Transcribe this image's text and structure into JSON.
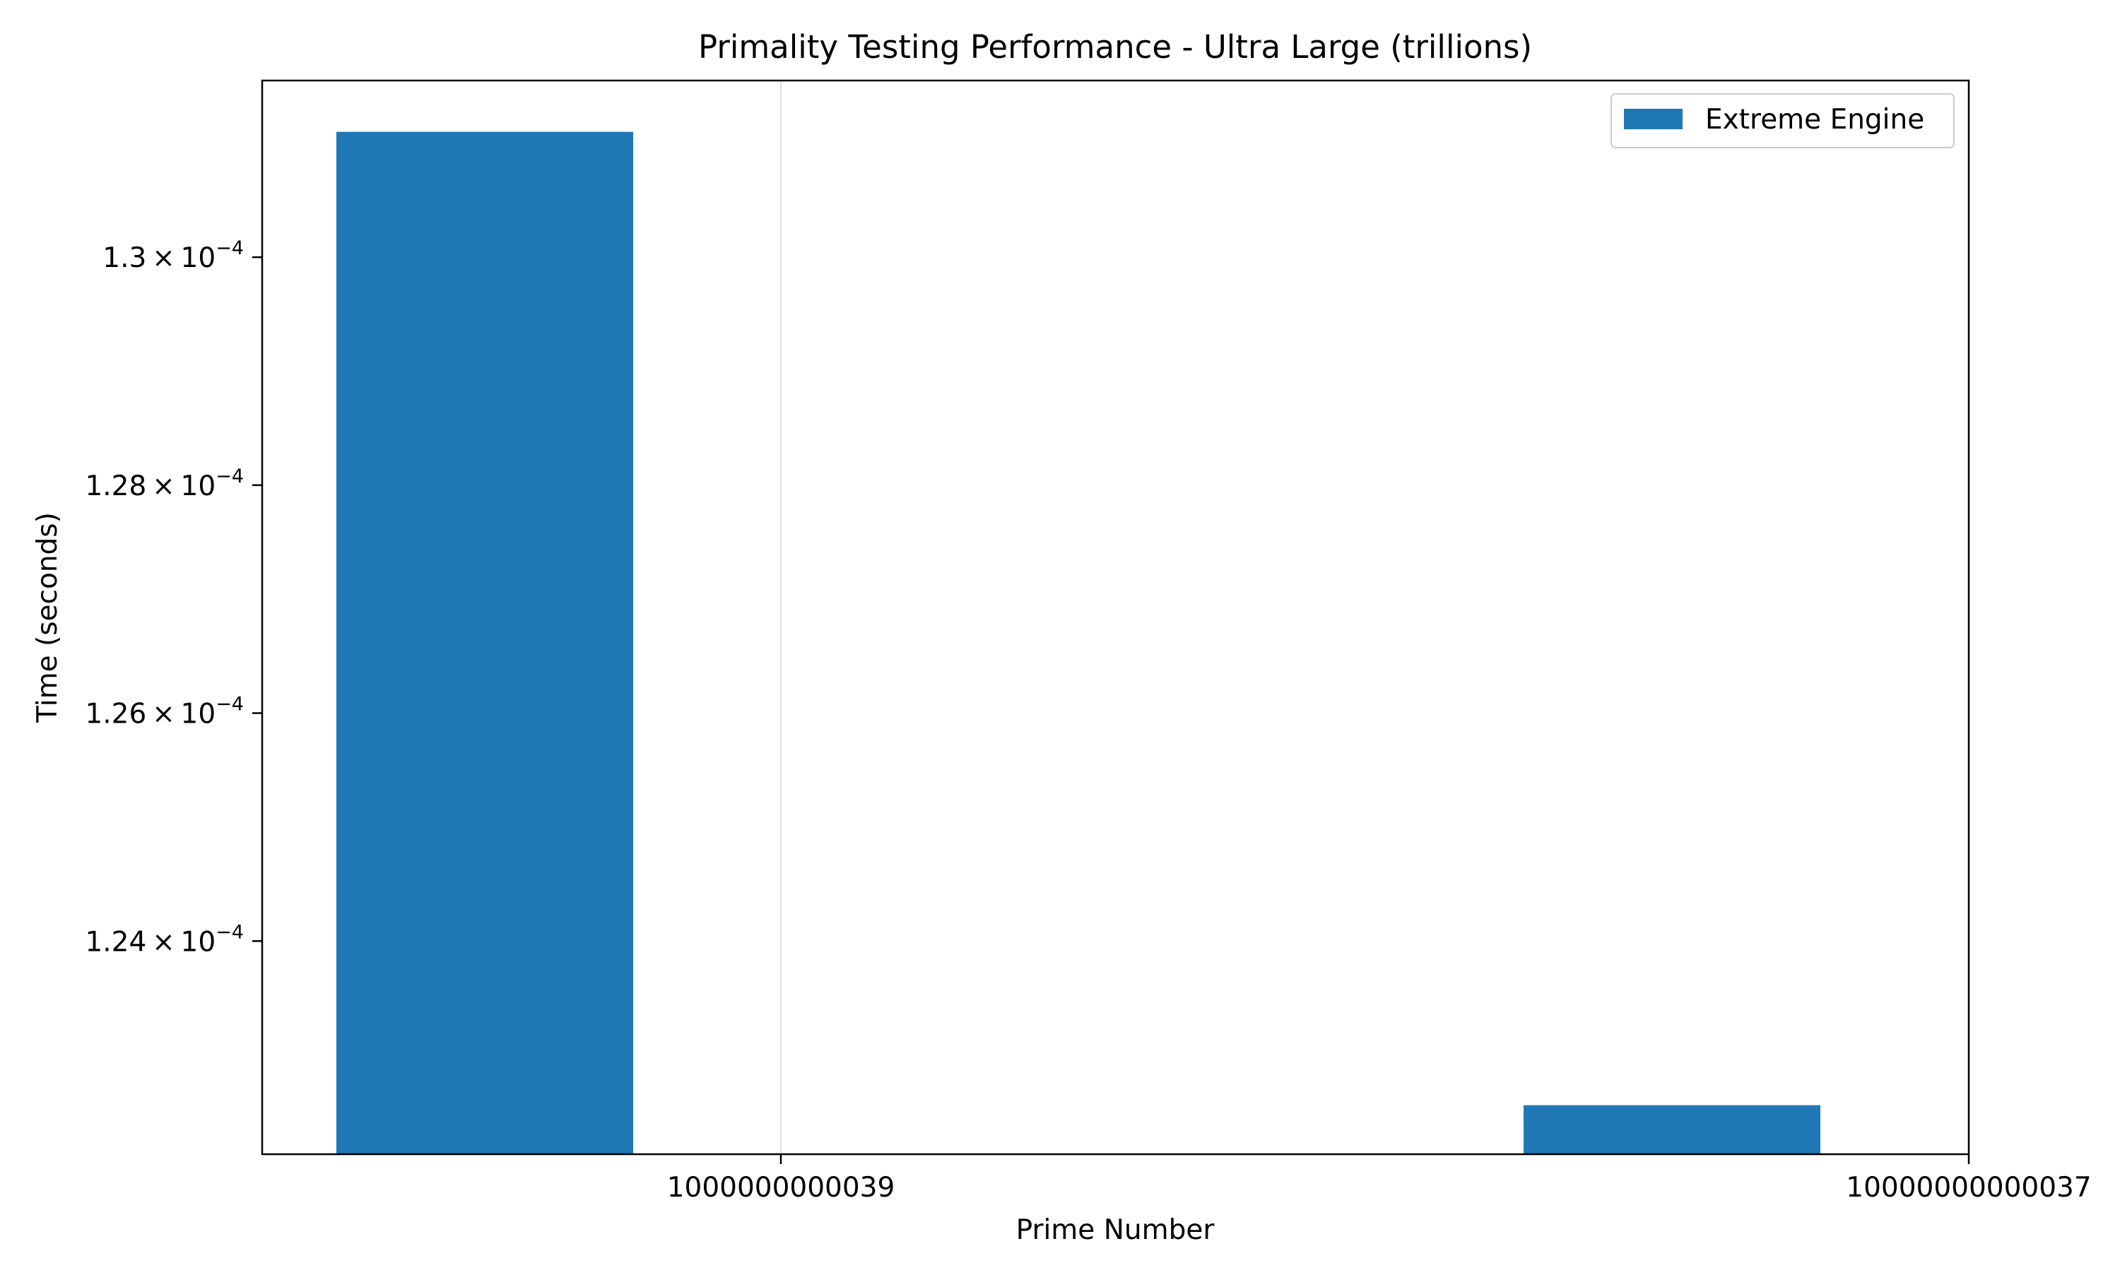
{
  "chart_data": {
    "type": "bar",
    "title": "Primality Testing Performance - Ultra Large (trillions)",
    "xlabel": "Prime Number",
    "ylabel": "Time (seconds)",
    "ylim": [
      0.00012213,
      0.00013155
    ],
    "categories": [
      "1000000000039",
      "10000000000037"
    ],
    "series": [
      {
        "name": "Extreme Engine",
        "color": "#1f77b4",
        "values": [
          0.0001311,
          0.00012256
        ]
      }
    ],
    "y_ticks": [
      {
        "value": 0.000124,
        "mantissa": "1.24",
        "exponent": "−4"
      },
      {
        "value": 0.000126,
        "mantissa": "1.26",
        "exponent": "−4"
      },
      {
        "value": 0.000128,
        "mantissa": "1.28",
        "exponent": "−4"
      },
      {
        "value": 0.00013,
        "mantissa": "1.3",
        "exponent": "−4"
      }
    ],
    "grid": "vertical",
    "legend_position": "top-right"
  }
}
